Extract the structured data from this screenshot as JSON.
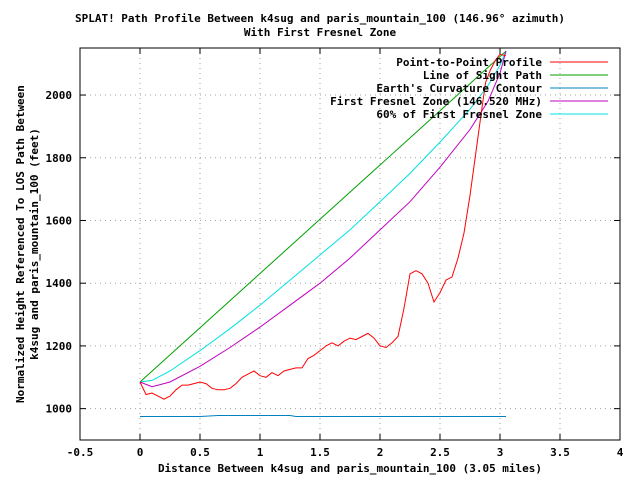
{
  "chart_data": {
    "type": "line",
    "title": "SPLAT! Path Profile Between k4sug and paris_mountain_100 (146.96° azimuth)",
    "subtitle": "With First Fresnel Zone",
    "xlabel": "Distance Between k4sug and paris_mountain_100 (3.05 miles)",
    "ylabel_line1": "Normalized Height Referenced To LOS Path Between",
    "ylabel_line2": "k4sug and paris_mountain_100 (feet)",
    "xlim": [
      -0.5,
      4
    ],
    "ylim": [
      900,
      2150
    ],
    "xticks": [
      -0.5,
      0,
      0.5,
      1,
      1.5,
      2,
      2.5,
      3,
      3.5,
      4
    ],
    "xtick_labels": [
      "-0.5",
      "0",
      "0.5",
      "1",
      "1.5",
      "2",
      "2.5",
      "3",
      "3.5",
      "4"
    ],
    "yticks": [
      1000,
      1200,
      1400,
      1600,
      1800,
      2000
    ],
    "ytick_labels": [
      "1000",
      "1200",
      "1400",
      "1600",
      "1800",
      "2000"
    ],
    "grid": true,
    "legend_position": "top-right",
    "series": [
      {
        "name": "Point-to-Point Profile",
        "color": "#ff0000",
        "x": [
          0,
          0.05,
          0.1,
          0.15,
          0.2,
          0.25,
          0.3,
          0.35,
          0.4,
          0.45,
          0.5,
          0.55,
          0.6,
          0.65,
          0.7,
          0.75,
          0.8,
          0.85,
          0.9,
          0.95,
          1.0,
          1.05,
          1.1,
          1.15,
          1.2,
          1.25,
          1.3,
          1.35,
          1.4,
          1.45,
          1.5,
          1.55,
          1.6,
          1.65,
          1.7,
          1.75,
          1.8,
          1.85,
          1.9,
          1.95,
          2.0,
          2.05,
          2.1,
          2.15,
          2.2,
          2.25,
          2.3,
          2.35,
          2.4,
          2.45,
          2.5,
          2.55,
          2.6,
          2.65,
          2.7,
          2.75,
          2.8,
          2.85,
          2.88,
          2.92,
          2.96,
          3.0,
          3.05
        ],
        "y": [
          1085,
          1045,
          1050,
          1040,
          1030,
          1040,
          1060,
          1075,
          1075,
          1080,
          1085,
          1080,
          1065,
          1060,
          1060,
          1065,
          1080,
          1100,
          1110,
          1120,
          1105,
          1100,
          1115,
          1105,
          1120,
          1125,
          1130,
          1130,
          1160,
          1170,
          1185,
          1200,
          1210,
          1200,
          1215,
          1225,
          1220,
          1230,
          1240,
          1225,
          1200,
          1195,
          1210,
          1230,
          1320,
          1430,
          1440,
          1430,
          1400,
          1340,
          1370,
          1410,
          1420,
          1480,
          1560,
          1680,
          1820,
          1960,
          2040,
          2080,
          2110,
          2130,
          2125
        ]
      },
      {
        "name": "Line of Sight Path",
        "color": "#00a000",
        "x": [
          0,
          3.05
        ],
        "y": [
          1085,
          2140
        ]
      },
      {
        "name": "Earth's Curvature Contour",
        "color": "#0080c0",
        "x": [
          0,
          0.5,
          0.65,
          1.25,
          1.3,
          2.0,
          2.5,
          3.05
        ],
        "y": [
          975,
          975,
          978,
          978,
          975,
          975,
          975,
          975
        ]
      },
      {
        "name": "First Fresnel Zone (146.520 MHz)",
        "color": "#c000c0",
        "x": [
          0,
          0.1,
          0.25,
          0.5,
          0.75,
          1.0,
          1.25,
          1.5,
          1.75,
          2.0,
          2.25,
          2.5,
          2.75,
          2.9,
          3.0,
          3.05
        ],
        "y": [
          1085,
          1070,
          1085,
          1135,
          1195,
          1260,
          1330,
          1400,
          1480,
          1570,
          1660,
          1770,
          1890,
          1980,
          2070,
          2140
        ]
      },
      {
        "name": "60% of First Fresnel Zone",
        "color": "#00e0e0",
        "x": [
          0,
          0.1,
          0.25,
          0.5,
          0.75,
          1.0,
          1.25,
          1.5,
          1.75,
          2.0,
          2.25,
          2.5,
          2.75,
          2.9,
          3.0,
          3.05
        ],
        "y": [
          1085,
          1090,
          1120,
          1185,
          1255,
          1330,
          1410,
          1490,
          1570,
          1660,
          1750,
          1850,
          1955,
          2030,
          2095,
          2140
        ]
      }
    ]
  }
}
